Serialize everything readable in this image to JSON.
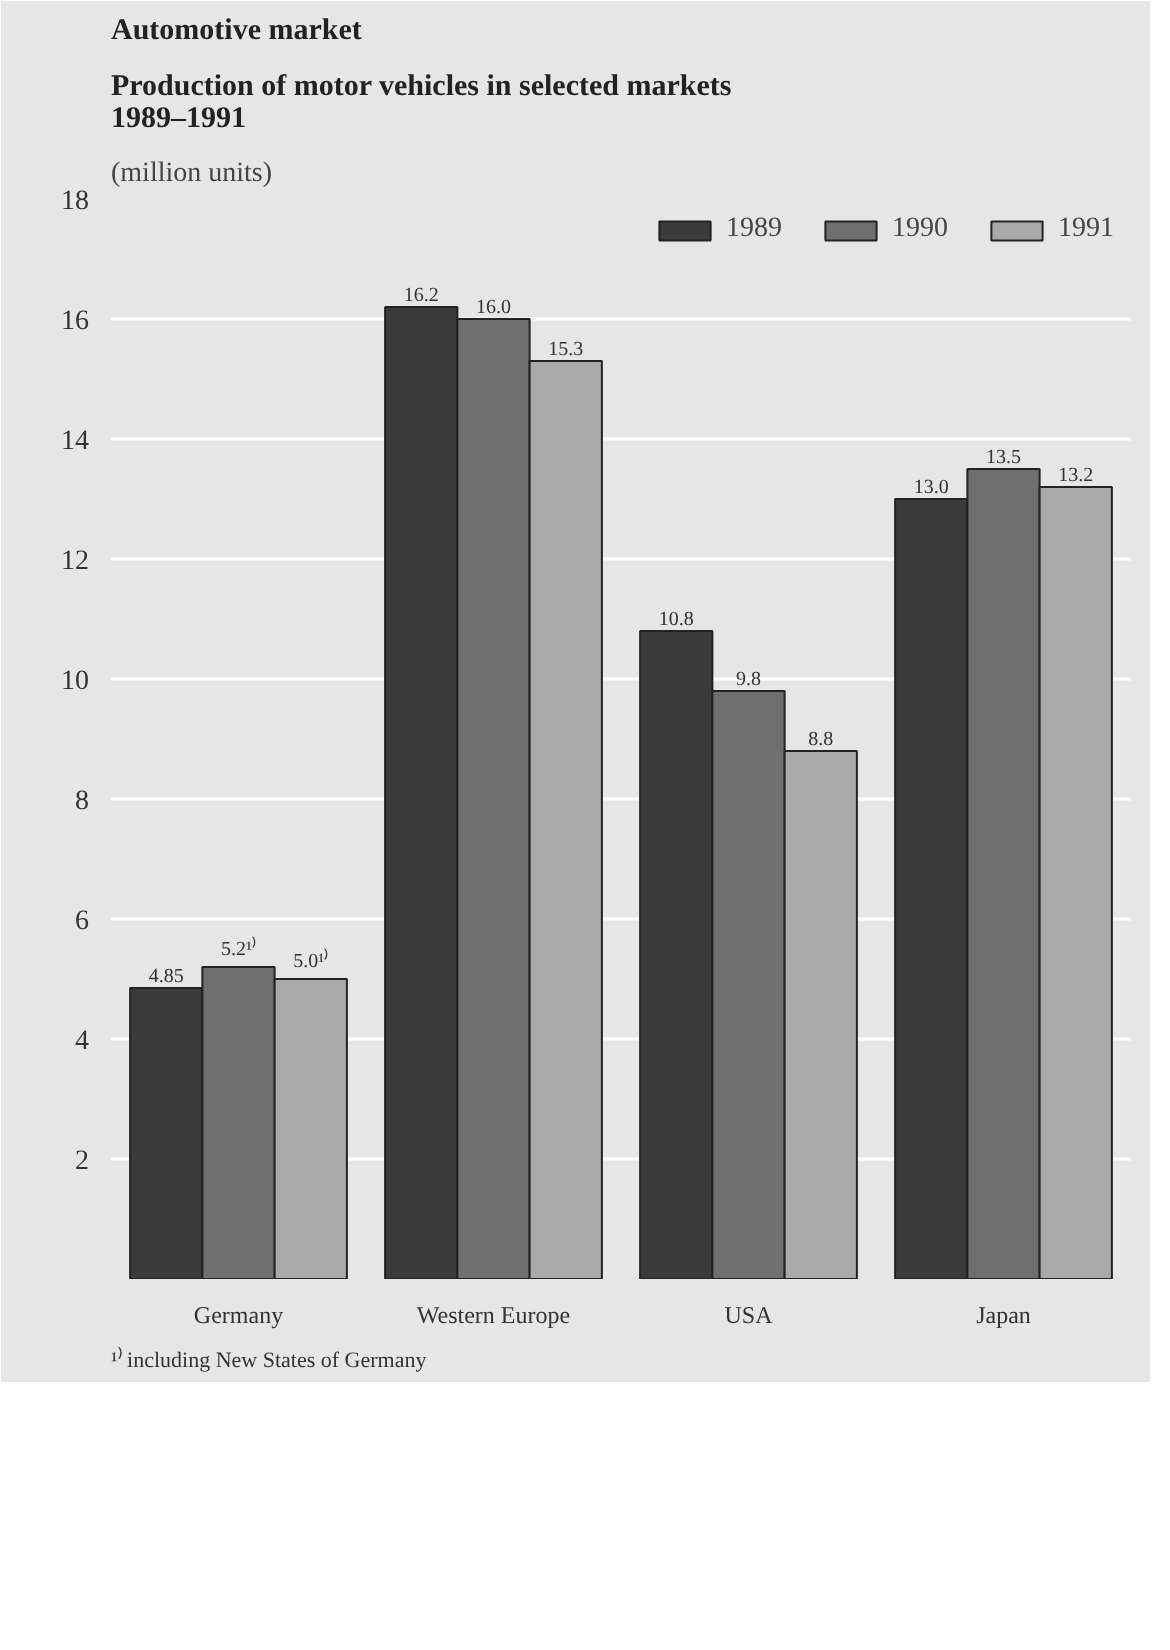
{
  "chart_data": {
    "type": "bar",
    "title": "Automotive market",
    "subtitle": "Production of motor vehicles in selected markets\n1989–1991",
    "categories": [
      "Germany",
      "Western Europe",
      "USA",
      "Japan"
    ],
    "series": [
      {
        "name": "1989",
        "color": "#3b3b3b",
        "values": [
          4.85,
          16.2,
          10.8,
          13.0
        ],
        "value_labels": [
          "4.85",
          "16.2",
          "10.8",
          "13.0"
        ]
      },
      {
        "name": "1990",
        "color": "#6f6f6f",
        "values": [
          5.2,
          16.0,
          9.8,
          13.5
        ],
        "value_labels": [
          "5.2¹⁾",
          "16.0",
          "9.8",
          "13.5"
        ]
      },
      {
        "name": "1991",
        "color": "#a9a9a9",
        "values": [
          5.0,
          15.3,
          8.8,
          13.2
        ],
        "value_labels": [
          "5.0¹⁾",
          "15.3",
          "8.8",
          "13.2"
        ]
      }
    ],
    "ylim": [
      0,
      18
    ],
    "yticks": [
      2,
      4,
      6,
      8,
      10,
      12,
      14,
      16,
      18
    ],
    "grid": "y",
    "legend": "top right",
    "annotations": [
      "(million units)",
      "¹⁾ including New States of Germany"
    ]
  }
}
